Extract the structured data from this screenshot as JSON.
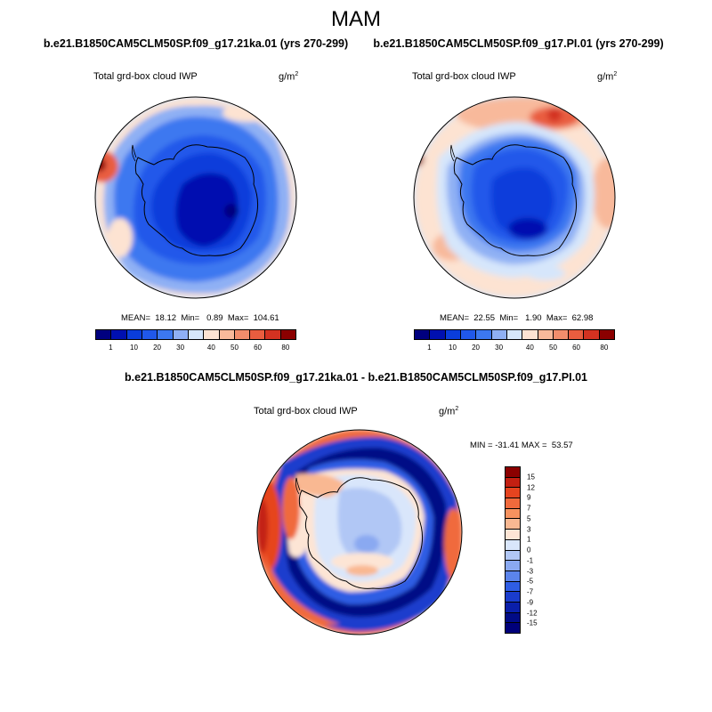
{
  "title": "MAM",
  "panels": {
    "left": {
      "run": "b.e21.B1850CAM5CLM50SP.f09_g17.21ka.01 (yrs 270-299)",
      "variable": "Total grd-box cloud IWP",
      "units_base": "g/m",
      "units_exp": "2",
      "stats": "MEAN=  18.12  Min=   0.89  Max=  104.61",
      "colorbar_ticks": [
        "1",
        "10",
        "20",
        "30",
        "40",
        "50",
        "60",
        "80"
      ]
    },
    "right": {
      "run": "b.e21.B1850CAM5CLM50SP.f09_g17.PI.01 (yrs 270-299)",
      "variable": "Total grd-box cloud IWP",
      "units_base": "g/m",
      "units_exp": "2",
      "stats": "MEAN=  22.55  Min=   1.90  Max=  62.98",
      "colorbar_ticks": [
        "1",
        "10",
        "20",
        "30",
        "40",
        "50",
        "60",
        "80"
      ]
    },
    "diff": {
      "run": "b.e21.B1850CAM5CLM50SP.f09_g17.21ka.01 - b.e21.B1850CAM5CLM50SP.f09_g17.PI.01",
      "variable": "Total grd-box cloud IWP",
      "units_base": "g/m",
      "units_exp": "2",
      "stats": "MIN = -31.41 MAX =  53.57",
      "colorbar_ticks": [
        "15",
        "12",
        "9",
        "7",
        "5",
        "3",
        "1",
        "0",
        "-1",
        "-3",
        "-5",
        "-7",
        "-9",
        "-12",
        "-15"
      ]
    }
  },
  "colors": {
    "seq": [
      "#00007f",
      "#0010b0",
      "#0a3ddb",
      "#2058ea",
      "#3c78f0",
      "#8fb0f4",
      "#d6e6fb",
      "#fde3d2",
      "#f8b99b",
      "#f28d6c",
      "#e95d3f",
      "#d33221",
      "#8b0000"
    ],
    "div": [
      "#8b0000",
      "#c32012",
      "#e6441f",
      "#f06a3c",
      "#f6925f",
      "#f9b892",
      "#fde5d5",
      "#d9e6fb",
      "#b1c7f5",
      "#8aa9f1",
      "#5b84eb",
      "#2f5de4",
      "#1a3ccd",
      "#0a1faa",
      "#010b86",
      "#00007a"
    ]
  }
}
